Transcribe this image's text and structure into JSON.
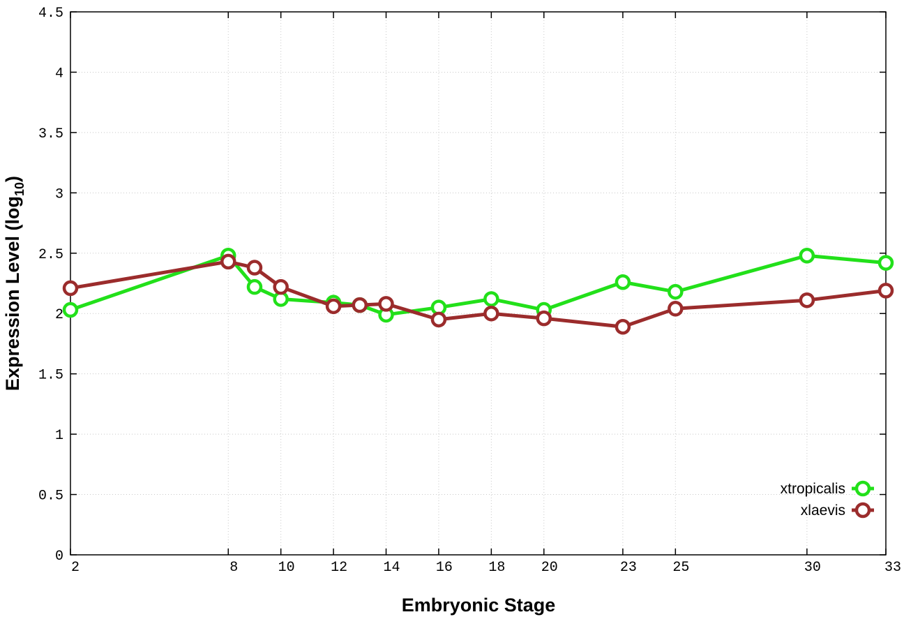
{
  "chart_data": {
    "type": "line",
    "xlabel": "Embryonic Stage",
    "ylabel": "Expression Level (log",
    "ylabel_sub": "10",
    "ylabel_close": ")",
    "xlim": [
      2,
      33
    ],
    "ylim": [
      0,
      4.5
    ],
    "grid": true,
    "legend_position": "bottom-right",
    "x_ticks": [
      2,
      8,
      10,
      12,
      14,
      16,
      18,
      20,
      23,
      25,
      30,
      33
    ],
    "y_ticks": [
      0,
      0.5,
      1,
      1.5,
      2,
      2.5,
      3,
      3.5,
      4,
      4.5
    ],
    "y_tick_labels": [
      "0",
      "0.5",
      "1",
      "1.5",
      "2",
      "2.5",
      "3",
      "3.5",
      "4",
      "4.5"
    ],
    "x": [
      2,
      8,
      9,
      10,
      12,
      13,
      14,
      16,
      18,
      20,
      23,
      25,
      30,
      33
    ],
    "series": [
      {
        "name": "xtropicalis",
        "color": "#22e01a",
        "values": [
          2.03,
          2.48,
          2.22,
          2.12,
          2.09,
          2.07,
          1.99,
          2.05,
          2.12,
          2.03,
          2.26,
          2.18,
          2.48,
          2.42
        ]
      },
      {
        "name": "xlaevis",
        "color": "#9b2c2c",
        "values": [
          2.21,
          2.43,
          2.38,
          2.22,
          2.06,
          2.07,
          2.08,
          1.95,
          2.0,
          1.96,
          1.89,
          2.04,
          2.11,
          2.19
        ]
      }
    ]
  }
}
